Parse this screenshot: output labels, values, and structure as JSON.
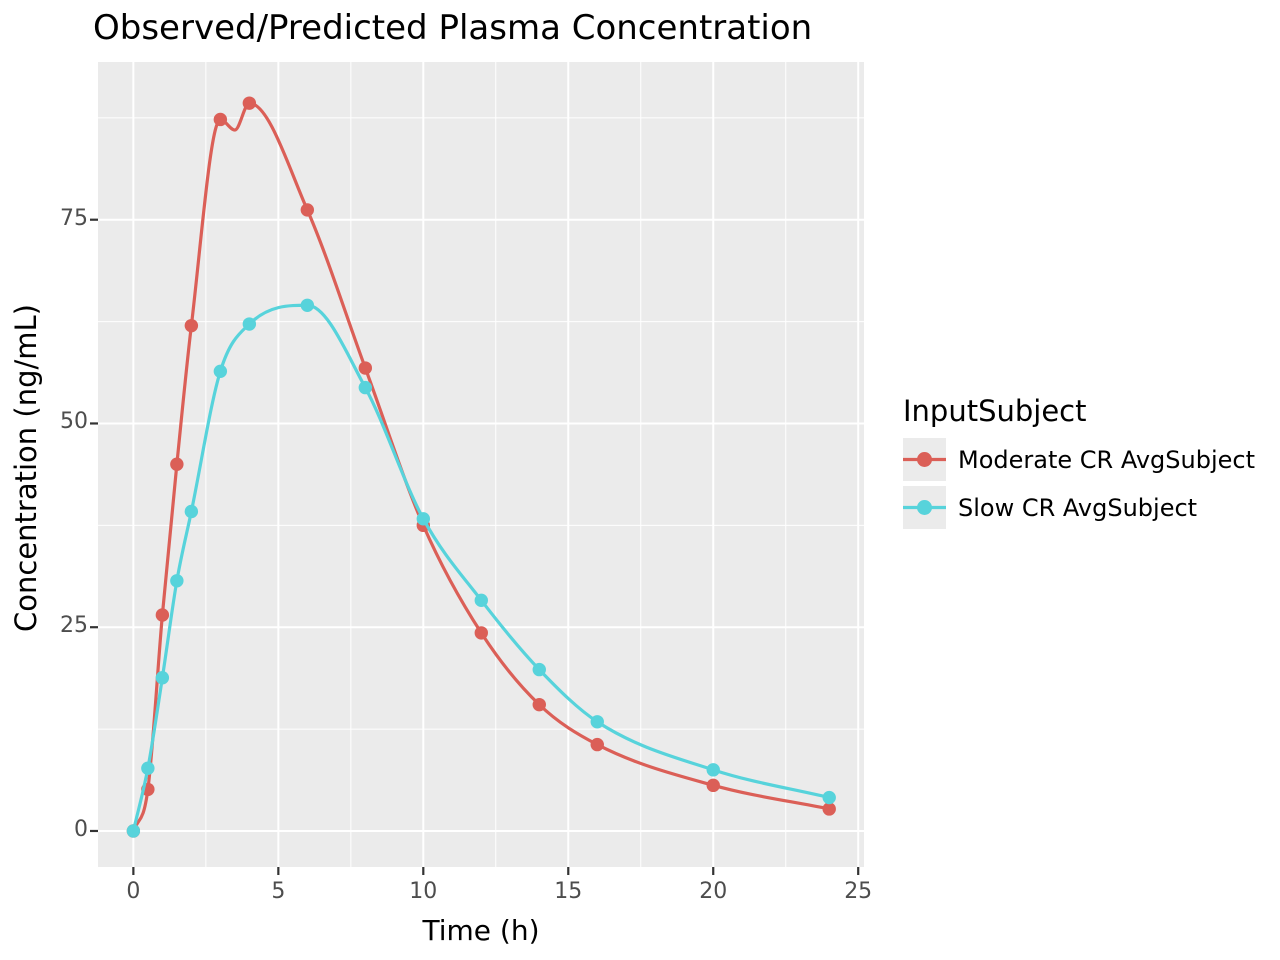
{
  "title": "Observed/Predicted Plasma Concentration",
  "axes": {
    "x_label": "Time (h)",
    "y_label": "Concentration (ng/mL)"
  },
  "legend": {
    "title": "InputSubject",
    "position": "right"
  },
  "colors": {
    "panel_background": "#EBEBEB",
    "grid": "#FFFFFF",
    "tick_mark": "#333333",
    "tick_text": "#4D4D4D",
    "text": "#000000",
    "moderate_cr": "#DB5F57",
    "slow_cr": "#57D3DB"
  },
  "chart_data": {
    "type": "line",
    "title": "Observed/Predicted Plasma Concentration",
    "xlabel": "Time (h)",
    "ylabel": "Concentration (ng/mL)",
    "legend_title": "InputSubject",
    "legend_position": "right",
    "grid": true,
    "xlim": [
      -1.22,
      25.2
    ],
    "ylim": [
      -4.42,
      94.35
    ],
    "x_ticks": [
      0,
      5,
      10,
      15,
      20,
      25
    ],
    "y_ticks": [
      0,
      25,
      50,
      75
    ],
    "x_minor_ticks": [
      2.5,
      7.5,
      12.5,
      17.5,
      22.5
    ],
    "y_minor_ticks": [
      12.5,
      37.5,
      62.5,
      87.5
    ],
    "x": [
      0,
      0.5,
      1,
      1.5,
      2,
      3,
      4,
      6,
      8,
      10,
      12,
      14,
      16,
      20,
      24
    ],
    "series": [
      {
        "name": "Moderate CR AvgSubject",
        "color": "#DB5F57",
        "values": [
          0,
          5.1,
          26.5,
          45,
          62,
          87.3,
          89.3,
          76.2,
          56.8,
          37.5,
          24.3,
          15.5,
          10.6,
          5.6,
          2.7
        ],
        "line_extra_vertices": [
          [
            3.5,
            86.0
          ]
        ]
      },
      {
        "name": "Slow CR AvgSubject",
        "color": "#57D3DB",
        "values": [
          0,
          7.7,
          18.8,
          30.7,
          39.2,
          56.4,
          62.2,
          64.5,
          54.4,
          38.3,
          28.3,
          19.8,
          13.4,
          7.5,
          4.1
        ],
        "line_extra_vertices": []
      }
    ]
  }
}
